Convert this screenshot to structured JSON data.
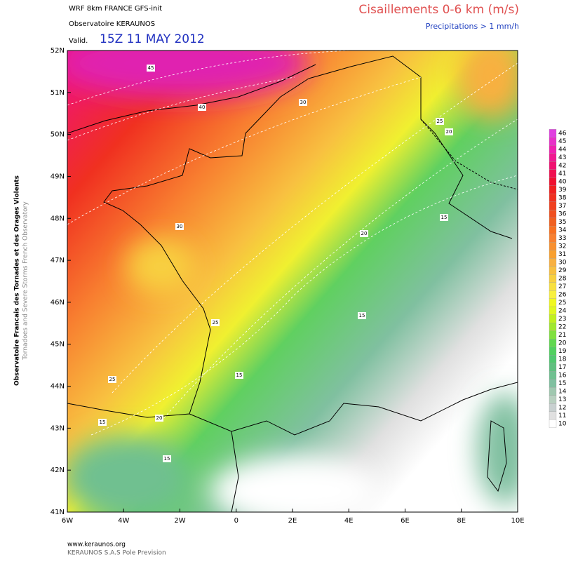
{
  "header": {
    "model": "WRF 8km FRANCE  GFS-init",
    "org": "Observatoire KERAUNOS",
    "valid_label": "Valid.",
    "valid_time": "15Z 11 MAY 2012",
    "title": "Cisaillements 0-6 km (m/s)",
    "subtitle": "Precipitations > 1 mm/h"
  },
  "side_text": {
    "line1": "Observatoire Francais des Tornades et des Orages Violents",
    "line2": "Tornadoes and Severe Storms French Observatory"
  },
  "footer": {
    "url": "www.keraunos.org",
    "company": "KERAUNOS S.A.S Pole Prevision"
  },
  "axes": {
    "lat_labels": [
      "52N",
      "51N",
      "50N",
      "49N",
      "48N",
      "47N",
      "46N",
      "45N",
      "44N",
      "43N",
      "42N",
      "41N"
    ],
    "lon_labels": [
      "6W",
      "4W",
      "2W",
      "0",
      "2E",
      "4E",
      "6E",
      "8E",
      "10E"
    ]
  },
  "contour_labels": [
    "45",
    "40",
    "30",
    "25",
    "20",
    "30",
    "20",
    "15",
    "25",
    "15",
    "25",
    "15",
    "20",
    "15",
    "15"
  ],
  "colorbar": {
    "levels": [
      46,
      45,
      44,
      43,
      42,
      41,
      40,
      39,
      38,
      37,
      36,
      35,
      34,
      33,
      32,
      31,
      30,
      29,
      28,
      27,
      26,
      25,
      24,
      23,
      22,
      21,
      20,
      19,
      18,
      17,
      16,
      15,
      14,
      13,
      12,
      11,
      10
    ],
    "colors": [
      "#e040e0",
      "#e830c8",
      "#f020b0",
      "#f01890",
      "#f01070",
      "#f01050",
      "#f01030",
      "#f02020",
      "#f03020",
      "#f04020",
      "#f05020",
      "#f06020",
      "#f87020",
      "#f88030",
      "#f89030",
      "#f8a030",
      "#f8b040",
      "#f8c040",
      "#f8d040",
      "#f8e040",
      "#f8f040",
      "#f0f820",
      "#e0f820",
      "#c0f020",
      "#a0e830",
      "#80e040",
      "#60d850",
      "#50d060",
      "#50c870",
      "#60c080",
      "#70c090",
      "#80c0a0",
      "#a0c8b0",
      "#b8d0c0",
      "#c8d0d0",
      "#e0e0e0",
      "#ffffff"
    ]
  }
}
